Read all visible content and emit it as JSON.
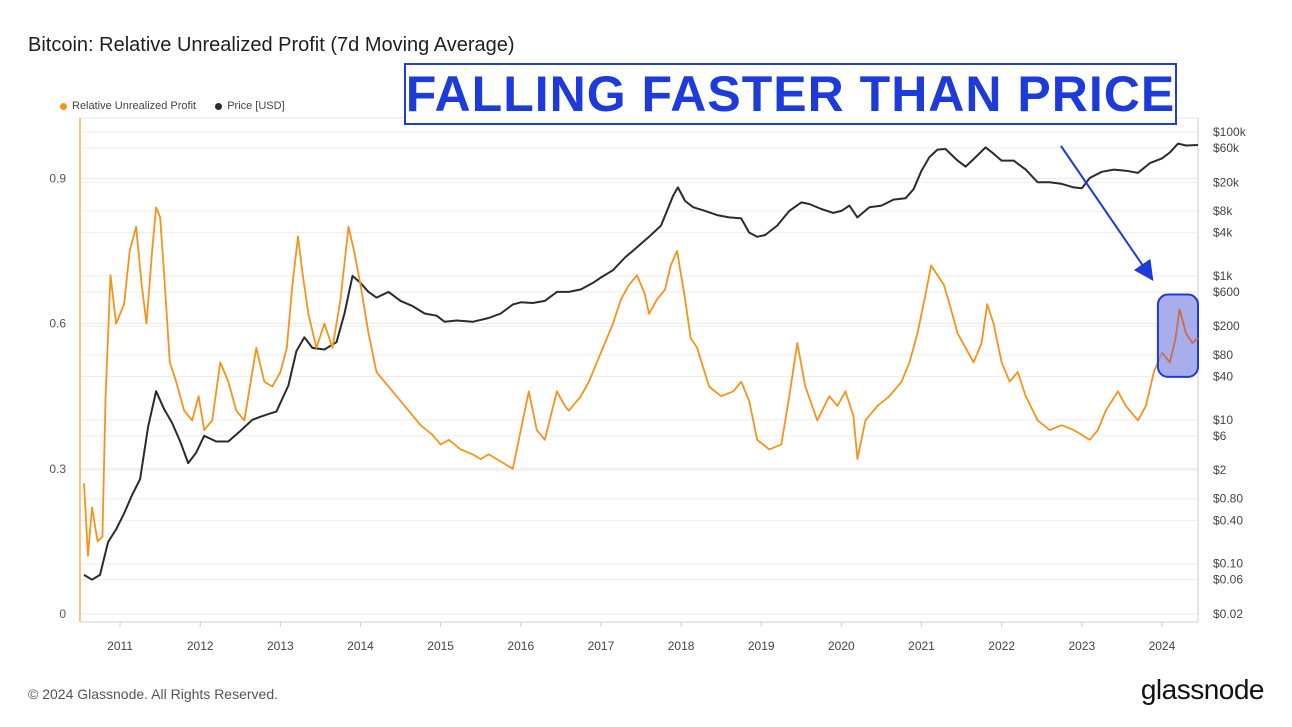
{
  "title": "Bitcoin: Relative Unrealized Profit (7d Moving Average)",
  "annotation": "FALLING FASTER THAN PRICE",
  "footer": "© 2024 Glassnode. All Rights Reserved.",
  "brand": "glassnode",
  "colors": {
    "rup": "#f7931a",
    "price": "#2b2b2b",
    "annotation": "#1d3bd9",
    "highlight_fill": "#8b93e6",
    "highlight_line": "#c87050"
  },
  "chart_data": {
    "type": "line",
    "legend_position": "top-left",
    "grid": true,
    "x_ticks": [
      "2011",
      "2012",
      "2013",
      "2014",
      "2015",
      "2016",
      "2017",
      "2018",
      "2019",
      "2020",
      "2021",
      "2022",
      "2023",
      "2024"
    ],
    "x_range": [
      2010.5,
      2024.45
    ],
    "y_left": {
      "ticks": [
        0,
        0.3,
        0.6,
        0.9
      ],
      "tick_labels": [
        "0",
        "0.3",
        "0.6",
        "0.9"
      ],
      "range": [
        0,
        1.0
      ]
    },
    "y_right": {
      "scale": "log",
      "range": [
        0.02,
        100000
      ],
      "ticks": [
        100000,
        60000,
        20000,
        8000,
        4000,
        1000,
        600,
        200,
        80,
        40,
        10,
        6,
        2,
        0.8,
        0.4,
        0.1,
        0.06,
        0.02
      ],
      "tick_labels": [
        "$100k",
        "$60k",
        "$20k",
        "$8k",
        "$4k",
        "$1k",
        "$600",
        "$200",
        "$80",
        "$40",
        "$10",
        "$6",
        "$2",
        "$0.80",
        "$0.40",
        "$0.10",
        "$0.06",
        "$0.02"
      ]
    },
    "series": [
      {
        "name": "Relative Unrealized Profit",
        "axis": "left",
        "x": [
          2010.55,
          2010.6,
          2010.65,
          2010.72,
          2010.78,
          2010.82,
          2010.88,
          2010.95,
          2011.05,
          2011.12,
          2011.2,
          2011.27,
          2011.33,
          2011.4,
          2011.45,
          2011.5,
          2011.55,
          2011.62,
          2011.7,
          2011.8,
          2011.9,
          2011.98,
          2012.05,
          2012.15,
          2012.25,
          2012.35,
          2012.45,
          2012.55,
          2012.65,
          2012.7,
          2012.8,
          2012.9,
          2013.0,
          2013.08,
          2013.15,
          2013.22,
          2013.28,
          2013.35,
          2013.45,
          2013.55,
          2013.65,
          2013.75,
          2013.85,
          2013.92,
          2014.0,
          2014.1,
          2014.2,
          2014.3,
          2014.45,
          2014.6,
          2014.75,
          2014.9,
          2015.0,
          2015.1,
          2015.25,
          2015.4,
          2015.5,
          2015.6,
          2015.7,
          2015.8,
          2015.9,
          2016.0,
          2016.1,
          2016.2,
          2016.3,
          2016.45,
          2016.55,
          2016.6,
          2016.75,
          2016.85,
          2016.95,
          2017.05,
          2017.15,
          2017.25,
          2017.35,
          2017.45,
          2017.55,
          2017.6,
          2017.7,
          2017.8,
          2017.87,
          2017.95,
          2018.0,
          2018.05,
          2018.12,
          2018.2,
          2018.35,
          2018.5,
          2018.65,
          2018.75,
          2018.85,
          2018.95,
          2019.1,
          2019.25,
          2019.35,
          2019.45,
          2019.55,
          2019.7,
          2019.85,
          2019.95,
          2020.05,
          2020.15,
          2020.2,
          2020.3,
          2020.45,
          2020.6,
          2020.75,
          2020.85,
          2020.95,
          2021.05,
          2021.12,
          2021.2,
          2021.28,
          2021.35,
          2021.45,
          2021.55,
          2021.65,
          2021.75,
          2021.82,
          2021.9,
          2022.0,
          2022.1,
          2022.2,
          2022.3,
          2022.45,
          2022.6,
          2022.75,
          2022.9,
          2023.0,
          2023.1,
          2023.2,
          2023.3,
          2023.45,
          2023.55,
          2023.7,
          2023.8,
          2023.9,
          2024.0,
          2024.1,
          2024.17,
          2024.22,
          2024.3,
          2024.38,
          2024.45
        ],
        "y": [
          0.27,
          0.12,
          0.22,
          0.15,
          0.16,
          0.45,
          0.7,
          0.6,
          0.64,
          0.75,
          0.8,
          0.68,
          0.6,
          0.75,
          0.84,
          0.82,
          0.7,
          0.52,
          0.48,
          0.42,
          0.4,
          0.45,
          0.38,
          0.4,
          0.52,
          0.48,
          0.42,
          0.4,
          0.5,
          0.55,
          0.48,
          0.47,
          0.5,
          0.55,
          0.68,
          0.78,
          0.7,
          0.62,
          0.55,
          0.6,
          0.55,
          0.65,
          0.8,
          0.75,
          0.68,
          0.58,
          0.5,
          0.48,
          0.45,
          0.42,
          0.39,
          0.37,
          0.35,
          0.36,
          0.34,
          0.33,
          0.32,
          0.33,
          0.32,
          0.31,
          0.3,
          0.38,
          0.46,
          0.38,
          0.36,
          0.46,
          0.43,
          0.42,
          0.45,
          0.48,
          0.52,
          0.56,
          0.6,
          0.65,
          0.68,
          0.7,
          0.66,
          0.62,
          0.65,
          0.67,
          0.72,
          0.75,
          0.7,
          0.65,
          0.57,
          0.55,
          0.47,
          0.45,
          0.46,
          0.48,
          0.44,
          0.36,
          0.34,
          0.35,
          0.45,
          0.56,
          0.47,
          0.4,
          0.45,
          0.43,
          0.46,
          0.41,
          0.32,
          0.4,
          0.43,
          0.45,
          0.48,
          0.52,
          0.58,
          0.66,
          0.72,
          0.7,
          0.68,
          0.64,
          0.58,
          0.55,
          0.52,
          0.56,
          0.64,
          0.6,
          0.52,
          0.48,
          0.5,
          0.45,
          0.4,
          0.38,
          0.39,
          0.38,
          0.37,
          0.36,
          0.38,
          0.42,
          0.46,
          0.43,
          0.4,
          0.43,
          0.5,
          0.54,
          0.52,
          0.57,
          0.63,
          0.58,
          0.56,
          0.57
        ]
      },
      {
        "name": "Price [USD]",
        "axis": "right",
        "x": [
          2010.55,
          2010.65,
          2010.75,
          2010.85,
          2010.95,
          2011.05,
          2011.15,
          2011.25,
          2011.35,
          2011.45,
          2011.55,
          2011.65,
          2011.75,
          2011.85,
          2011.95,
          2012.05,
          2012.2,
          2012.35,
          2012.5,
          2012.65,
          2012.75,
          2012.85,
          2012.95,
          2013.1,
          2013.2,
          2013.3,
          2013.4,
          2013.55,
          2013.7,
          2013.8,
          2013.9,
          2014.0,
          2014.1,
          2014.2,
          2014.35,
          2014.5,
          2014.65,
          2014.8,
          2014.95,
          2015.05,
          2015.2,
          2015.4,
          2015.6,
          2015.75,
          2015.9,
          2016.0,
          2016.15,
          2016.3,
          2016.45,
          2016.6,
          2016.75,
          2016.9,
          2017.0,
          2017.15,
          2017.3,
          2017.45,
          2017.6,
          2017.75,
          2017.9,
          2017.96,
          2018.05,
          2018.15,
          2018.3,
          2018.45,
          2018.6,
          2018.75,
          2018.85,
          2018.95,
          2019.05,
          2019.2,
          2019.35,
          2019.5,
          2019.6,
          2019.75,
          2019.9,
          2020.0,
          2020.1,
          2020.2,
          2020.35,
          2020.5,
          2020.65,
          2020.8,
          2020.9,
          2021.0,
          2021.1,
          2021.2,
          2021.3,
          2021.45,
          2021.55,
          2021.65,
          2021.8,
          2021.9,
          2022.0,
          2022.15,
          2022.3,
          2022.45,
          2022.6,
          2022.75,
          2022.9,
          2023.0,
          2023.1,
          2023.25,
          2023.4,
          2023.55,
          2023.7,
          2023.85,
          2024.0,
          2024.1,
          2024.2,
          2024.3,
          2024.45
        ],
        "y": [
          0.07,
          0.06,
          0.07,
          0.2,
          0.3,
          0.5,
          0.9,
          1.5,
          8,
          25,
          14,
          9,
          5,
          2.5,
          3.5,
          6,
          5,
          5,
          7,
          10,
          11,
          12,
          13,
          30,
          90,
          140,
          100,
          95,
          120,
          300,
          1000,
          800,
          600,
          500,
          600,
          450,
          380,
          300,
          280,
          230,
          240,
          230,
          260,
          300,
          400,
          430,
          420,
          450,
          600,
          600,
          650,
          800,
          950,
          1200,
          1800,
          2500,
          3500,
          5000,
          13000,
          17000,
          11000,
          9000,
          8000,
          7000,
          6500,
          6300,
          4000,
          3500,
          3700,
          5000,
          8000,
          10500,
          10000,
          8500,
          7500,
          8000,
          9500,
          6500,
          9000,
          9500,
          11500,
          12000,
          16000,
          29000,
          45000,
          57000,
          58000,
          40000,
          33000,
          42000,
          61000,
          50000,
          40000,
          40000,
          30000,
          20000,
          20000,
          19000,
          17000,
          16500,
          23000,
          28000,
          30000,
          29000,
          27000,
          37000,
          43000,
          52000,
          69000,
          65000,
          66000
        ]
      }
    ],
    "highlight": {
      "x_range": [
        2023.95,
        2024.45
      ],
      "y_range": [
        0.49,
        0.66
      ]
    }
  }
}
